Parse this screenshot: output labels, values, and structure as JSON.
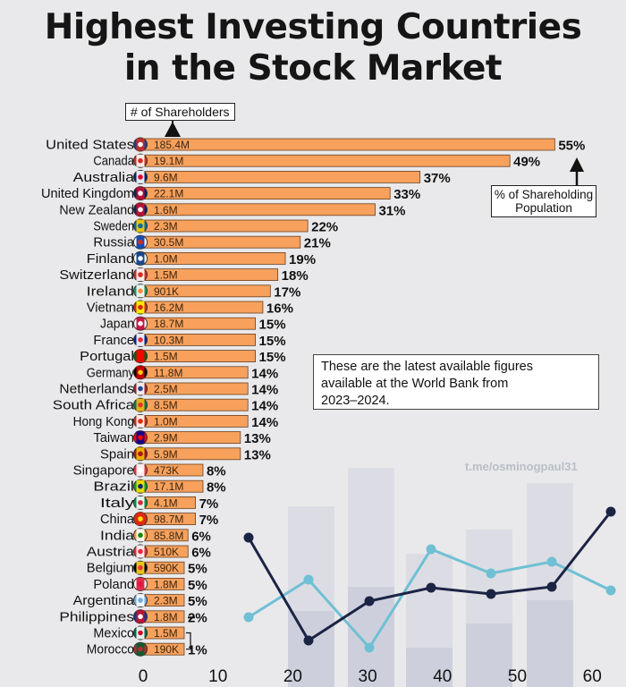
{
  "title_line1": "Highest Investing Countries",
  "title_line2": "in the Stock Market",
  "callout_shareholders": "# of Shareholders",
  "callout_population_line1": "% of Shareholding",
  "callout_population_line2": "Population",
  "note_line1": "These are the latest available figures",
  "note_line2": "available at the World Bank from",
  "note_line3": "2023–2024.",
  "watermark": "t.me/osminogpaul31",
  "colors": {
    "bar": "#f7a15c",
    "bar_stroke": "#6a4020",
    "text": "#111111",
    "background": "#e9e9eb"
  },
  "chart_data": {
    "type": "bar",
    "orientation": "horizontal",
    "xlim": [
      0,
      60
    ],
    "x_ticks": [
      "0",
      "10",
      "20",
      "30",
      "40",
      "50",
      "60"
    ],
    "categories": [
      "United States",
      "Canada",
      "Australia",
      "United Kingdom",
      "New Zealand",
      "Sweden",
      "Russia",
      "Finland",
      "Switzerland",
      "Ireland",
      "Vietnam",
      "Japan",
      "France",
      "Portugal",
      "Germany",
      "Netherlands",
      "South Africa",
      "Hong Kong",
      "Taiwan",
      "Spain",
      "Singapore",
      "Brazil",
      "Italy",
      "China",
      "India",
      "Austria",
      "Belgium",
      "Poland",
      "Argentina",
      "Philippines",
      "Mexico",
      "Morocco"
    ],
    "values": [
      55,
      49,
      37,
      33,
      31,
      22,
      21,
      19,
      18,
      17,
      16,
      15,
      15,
      15,
      14,
      14,
      14,
      14,
      13,
      13,
      8,
      8,
      7,
      7,
      6,
      6,
      5,
      5,
      5,
      2,
      1,
      1
    ],
    "value_labels": [
      "55%",
      "49%",
      "37%",
      "33%",
      "31%",
      "22%",
      "21%",
      "19%",
      "18%",
      "17%",
      "16%",
      "15%",
      "15%",
      "15%",
      "14%",
      "14%",
      "14%",
      "14%",
      "13%",
      "13%",
      "8%",
      "8%",
      "7%",
      "7%",
      "6%",
      "6%",
      "5%",
      "5%",
      "5%",
      "2%",
      "",
      "1%"
    ],
    "shareholders": [
      "185.4M",
      "19.1M",
      "9.6M",
      "22.1M",
      "1.6M",
      "2.3M",
      "30.5M",
      "1.0M",
      "1.5M",
      "901K",
      "16.2M",
      "18.7M",
      "10.3M",
      "1.5M",
      "11.8M",
      "2.5M",
      "8.5M",
      "1.0M",
      "2.9M",
      "5.9M",
      "473K",
      "17.1M",
      "4.1M",
      "98.7M",
      "85.8M",
      "510K",
      "590K",
      "1.8M",
      "2.3M",
      "1.8M",
      "1.5M",
      "190K"
    ],
    "flag_colors": [
      [
        "#1c3f94",
        "#d22f27",
        "#ffffff"
      ],
      [
        "#d52b1e",
        "#ffffff",
        "#d52b1e"
      ],
      [
        "#012169",
        "#ffffff",
        "#e4002b"
      ],
      [
        "#012169",
        "#c8102e",
        "#ffffff"
      ],
      [
        "#012169",
        "#cc142b",
        "#ffffff"
      ],
      [
        "#006aa7",
        "#fecc00",
        "#006aa7"
      ],
      [
        "#ffffff",
        "#0039a6",
        "#d52b1e"
      ],
      [
        "#ffffff",
        "#003580",
        "#ffffff"
      ],
      [
        "#d52b1e",
        "#ffffff",
        "#d52b1e"
      ],
      [
        "#169b62",
        "#ffffff",
        "#ff883e"
      ],
      [
        "#da251d",
        "#ffff00",
        "#da251d"
      ],
      [
        "#ffffff",
        "#bc002d",
        "#ffffff"
      ],
      [
        "#002395",
        "#ffffff",
        "#ed2939"
      ],
      [
        "#006600",
        "#ff0000",
        "#ff0000"
      ],
      [
        "#000000",
        "#dd0000",
        "#ffce00"
      ],
      [
        "#ae1c28",
        "#ffffff",
        "#21468b"
      ],
      [
        "#007a4d",
        "#ffb612",
        "#de3831"
      ],
      [
        "#de2910",
        "#ffffff",
        "#de2910"
      ],
      [
        "#fe0000",
        "#000095",
        "#fe0000"
      ],
      [
        "#aa151b",
        "#f1bf00",
        "#aa151b"
      ],
      [
        "#ef3340",
        "#ffffff",
        "#ffffff"
      ],
      [
        "#009c3b",
        "#ffdf00",
        "#002776"
      ],
      [
        "#009246",
        "#ffffff",
        "#ce2b37"
      ],
      [
        "#de2910",
        "#de2910",
        "#ffde00"
      ],
      [
        "#ff9933",
        "#ffffff",
        "#138808"
      ],
      [
        "#ed2939",
        "#ffffff",
        "#ed2939"
      ],
      [
        "#000000",
        "#fdda24",
        "#ef3340"
      ],
      [
        "#ffffff",
        "#dc143c",
        "#dc143c"
      ],
      [
        "#74acdf",
        "#ffffff",
        "#74acdf"
      ],
      [
        "#0038a8",
        "#ce1126",
        "#ffffff"
      ],
      [
        "#006847",
        "#ffffff",
        "#ce1126"
      ],
      [
        "#c1272d",
        "#006233",
        "#c1272d"
      ]
    ]
  }
}
